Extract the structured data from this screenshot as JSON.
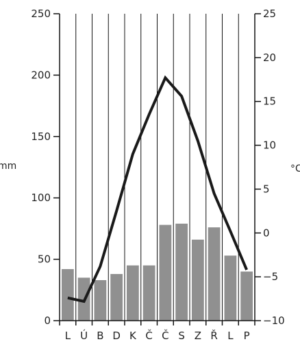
{
  "chart_data": {
    "type": "bar",
    "categories": [
      "L",
      "Ú",
      "B",
      "D",
      "K",
      "Č",
      "Č",
      "S",
      "Z",
      "Ř",
      "L",
      "P"
    ],
    "series": [
      {
        "type": "bar",
        "axis": "left",
        "values": [
          42,
          35,
          33,
          38,
          45,
          45,
          78,
          79,
          66,
          76,
          53,
          40
        ],
        "color": "#909090"
      },
      {
        "type": "line",
        "axis": "right",
        "values": [
          -7.4,
          -7.8,
          -3.8,
          2.5,
          9.0,
          13.5,
          17.7,
          15.6,
          10.5,
          4.5,
          0.2,
          -4.2
        ],
        "color": "#1a1a1a"
      }
    ],
    "y_left": {
      "label": "mm",
      "min": 0,
      "max": 250,
      "ticks": [
        0,
        50,
        100,
        150,
        200,
        250
      ]
    },
    "y_right": {
      "label": "°C",
      "min": -10,
      "max": 25,
      "ticks": [
        -10,
        -5,
        0,
        5,
        10,
        15,
        20,
        25
      ]
    },
    "grid": {
      "vertical": true,
      "horizontal": false
    }
  }
}
